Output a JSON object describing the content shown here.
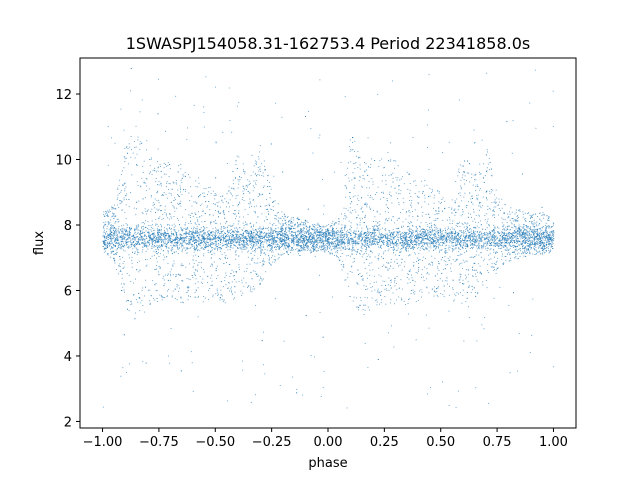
{
  "chart_data": {
    "type": "scatter",
    "title": "1SWASPJ154058.31-162753.4 Period 22341858.0s",
    "xlabel": "phase",
    "ylabel": "flux",
    "xlim": [
      -1.1,
      1.1
    ],
    "ylim": [
      1.8,
      13.1
    ],
    "x_ticks": [
      -1.0,
      -0.75,
      -0.5,
      -0.25,
      0.0,
      0.25,
      0.5,
      0.75,
      1.0
    ],
    "x_tick_labels": [
      "−1.00",
      "−0.75",
      "−0.50",
      "−0.25",
      "0.00",
      "0.25",
      "0.50",
      "0.75",
      "1.00"
    ],
    "y_ticks": [
      2,
      4,
      6,
      8,
      10,
      12
    ],
    "y_tick_labels": [
      "2",
      "4",
      "6",
      "8",
      "10",
      "12"
    ],
    "grid": false,
    "legend": "none",
    "point_color": "#1f77b4",
    "series": [
      {
        "phase_range": [
          -1.0,
          1.0
        ],
        "baseline_flux": 7.6,
        "flux_range": [
          2.4,
          12.8
        ],
        "envelope": {
          "x": [
            -1.0,
            -0.95,
            -0.9,
            -0.85,
            -0.8,
            -0.75,
            -0.7,
            -0.65,
            -0.6,
            -0.55,
            -0.5,
            -0.45,
            -0.4,
            -0.35,
            -0.3,
            -0.25,
            -0.2,
            -0.15,
            -0.1,
            -0.05,
            0.0,
            0.05,
            0.1,
            0.15,
            0.2,
            0.25,
            0.3,
            0.35,
            0.4,
            0.45,
            0.5,
            0.55,
            0.6,
            0.65,
            0.7,
            0.75,
            0.8,
            0.85,
            0.9,
            0.95,
            1.0
          ],
          "upper": [
            8.5,
            8.6,
            10.5,
            11.2,
            10.2,
            9.9,
            10.0,
            9.8,
            9.5,
            9.4,
            9.0,
            9.0,
            10.3,
            9.4,
            10.5,
            9.0,
            8.4,
            8.3,
            8.2,
            8.1,
            8.0,
            8.4,
            10.8,
            10.3,
            10.0,
            10.2,
            10.0,
            9.8,
            9.6,
            9.2,
            9.0,
            9.0,
            10.3,
            9.5,
            10.5,
            9.0,
            8.6,
            8.5,
            8.4,
            8.4,
            8.2
          ],
          "lower": [
            7.2,
            6.9,
            5.5,
            5.0,
            5.5,
            5.7,
            5.8,
            5.6,
            5.7,
            5.6,
            5.8,
            5.6,
            5.8,
            5.9,
            6.2,
            6.8,
            7.1,
            7.2,
            7.2,
            7.2,
            7.2,
            6.9,
            5.5,
            5.2,
            5.5,
            5.5,
            5.5,
            5.6,
            5.8,
            5.6,
            5.8,
            5.6,
            5.6,
            5.8,
            6.0,
            6.6,
            6.9,
            7.0,
            7.1,
            7.1,
            7.2
          ]
        }
      }
    ]
  }
}
